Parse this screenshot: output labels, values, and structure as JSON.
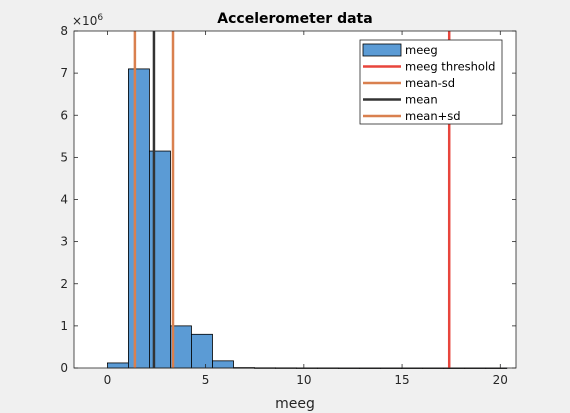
{
  "chart_data": {
    "type": "bar",
    "title": "Accelerometer data",
    "xlabel": "meeg",
    "ylabel": "",
    "xlim": [
      -1.7,
      20.8
    ],
    "ylim": [
      0,
      8
    ],
    "y_multiplier_label": "×10",
    "y_multiplier_exponent": "6",
    "x_ticks": [
      {
        "value": 0,
        "label": "0"
      },
      {
        "value": 5,
        "label": "5"
      },
      {
        "value": 10,
        "label": "10"
      },
      {
        "value": 15,
        "label": "15"
      },
      {
        "value": 20,
        "label": "20"
      }
    ],
    "y_ticks": [
      {
        "value": 0,
        "label": "0"
      },
      {
        "value": 1,
        "label": "1"
      },
      {
        "value": 2,
        "label": "2"
      },
      {
        "value": 3,
        "label": "3"
      },
      {
        "value": 4,
        "label": "4"
      },
      {
        "value": 5,
        "label": "5"
      },
      {
        "value": 6,
        "label": "6"
      },
      {
        "value": 7,
        "label": "7"
      },
      {
        "value": 8,
        "label": "8"
      }
    ],
    "histogram": {
      "name": "meeg",
      "color": "#5b9bd5",
      "edge_color": "#000000",
      "bin_edges": [
        0,
        1.07,
        2.14,
        3.21,
        4.28,
        5.35,
        6.42,
        7.49,
        8.56,
        9.63,
        10.7,
        11.77,
        12.84,
        13.91,
        14.98,
        16.05,
        17.12,
        18.19,
        19.26,
        20.33
      ],
      "counts": [
        0.12,
        7.1,
        5.15,
        1.0,
        0.8,
        0.17,
        0.01,
        0.005,
        0.004,
        0.003,
        0.003,
        0.002,
        0.002,
        0.002,
        0.002,
        0.002,
        0.002,
        0.002,
        0.002
      ]
    },
    "vertical_lines": [
      {
        "name": "meeg threshold",
        "x": 17.4,
        "color": "#e8453c"
      },
      {
        "name": "mean-sd",
        "x": 1.4,
        "color": "#d9804f"
      },
      {
        "name": "mean",
        "x": 2.37,
        "color": "#333333"
      },
      {
        "name": "mean+sd",
        "x": 3.34,
        "color": "#d9804f"
      }
    ],
    "legend": {
      "placement": "top-right",
      "entries": [
        {
          "label": "meeg",
          "kind": "patch",
          "color": "#5b9bd5"
        },
        {
          "label": "meeg threshold",
          "kind": "line",
          "color": "#e8453c"
        },
        {
          "label": "mean-sd",
          "kind": "line",
          "color": "#d9804f"
        },
        {
          "label": "mean",
          "kind": "line",
          "color": "#333333"
        },
        {
          "label": "mean+sd",
          "kind": "line",
          "color": "#d9804f"
        }
      ]
    }
  }
}
